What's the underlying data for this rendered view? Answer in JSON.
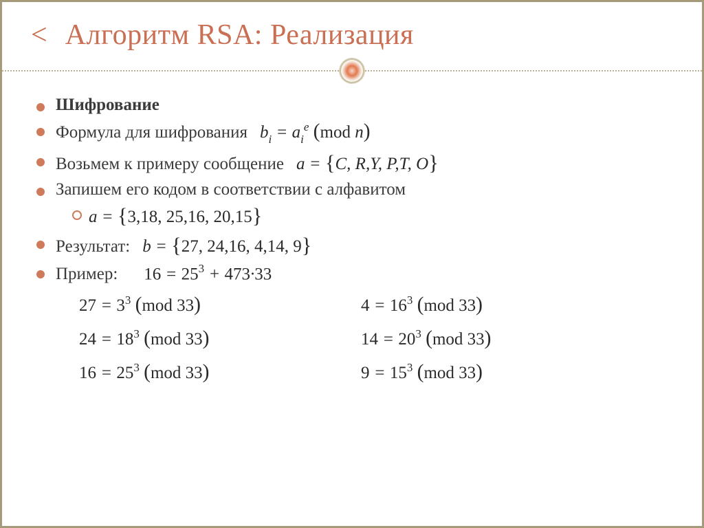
{
  "colors": {
    "border": "#a59a7a",
    "accent": "#c96f53",
    "bullet": "#cf7a5b",
    "dotted": "#b9b196",
    "text": "#3b3b3b"
  },
  "typography": {
    "title_fontsize": 42,
    "heading_fontsize": 34,
    "body_fontsize": 25,
    "font_family": "Georgia, Times New Roman, serif"
  },
  "header": {
    "back_symbol": "<",
    "title": "Алгоритм RSA: Реализация"
  },
  "content": {
    "heading": "Шифрование",
    "formula_label": "Формула для шифрования",
    "formula_math": "bᵢ = aᵢᵉ (mod n)",
    "message_label": "Возьмем к примеру сообщение",
    "message_math": "a = {C, R, Y, P, T, O}",
    "code_label": "Запишем его кодом в соответствии с алфавитом",
    "code_math": "a = {3,18, 25,16, 20,15}",
    "result_label": "Результат:",
    "result_math": "b = {27, 24,16, 4,14, 9}",
    "example_label": "Пример:",
    "example_top": "16 = 25³ + 473·33",
    "example_grid": [
      {
        "lhs": "27",
        "base": "3",
        "exp": "3",
        "mod": "33"
      },
      {
        "lhs": "4",
        "base": "16",
        "exp": "3",
        "mod": "33"
      },
      {
        "lhs": "24",
        "base": "18",
        "exp": "3",
        "mod": "33"
      },
      {
        "lhs": "14",
        "base": "20",
        "exp": "3",
        "mod": "33"
      },
      {
        "lhs": "16",
        "base": "25",
        "exp": "3",
        "mod": "33"
      },
      {
        "lhs": "9",
        "base": "15",
        "exp": "3",
        "mod": "33"
      }
    ]
  }
}
